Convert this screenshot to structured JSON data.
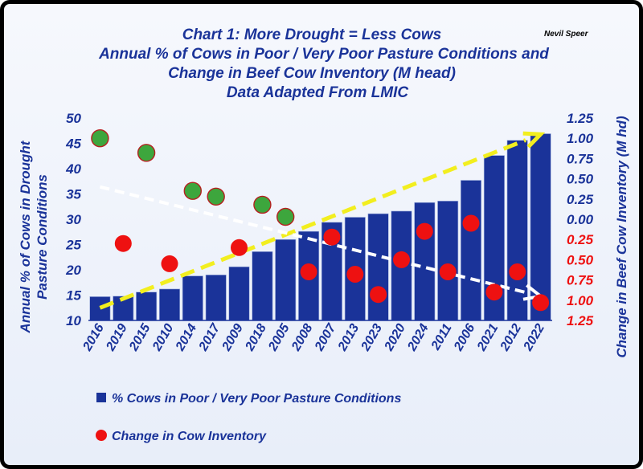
{
  "chart_data": {
    "type": "bar",
    "title_lines": [
      "Chart 1:  More Drought = Less Cows",
      "Annual % of Cows in Poor / Very Poor Pasture Conditions and",
      "Change in Beef Cow Inventory (M head)",
      "Data Adapted From LMIC"
    ],
    "author": "Nevil Speer",
    "ylabel_left_lines": [
      "Annual % of Cows in Drought",
      "Pasture Conditions"
    ],
    "ylabel_right": "Change in Beef Cow Inventory (M hd)",
    "categories": [
      "2016",
      "2019",
      "2015",
      "2010",
      "2014",
      "2017",
      "2009",
      "2018",
      "2005",
      "2008",
      "2007",
      "2013",
      "2023",
      "2020",
      "2024",
      "2011",
      "2006",
      "2021",
      "2012",
      "2022"
    ],
    "ylim_left": [
      10,
      50
    ],
    "yticks_left": [
      "10",
      "15",
      "20",
      "25",
      "30",
      "35",
      "40",
      "45",
      "50"
    ],
    "ylim_right": [
      -1.25,
      1.25
    ],
    "yticks_right": [
      {
        "value": 1.25,
        "label": "1.25"
      },
      {
        "value": 1.0,
        "label": "1.00"
      },
      {
        "value": 0.75,
        "label": "0.75"
      },
      {
        "value": 0.5,
        "label": "0.50"
      },
      {
        "value": 0.25,
        "label": "0.25"
      },
      {
        "value": 0.0,
        "label": "0.00"
      },
      {
        "value": -0.25,
        "label": "0.25"
      },
      {
        "value": -0.5,
        "label": "0.50"
      },
      {
        "value": -0.75,
        "label": "0.75"
      },
      {
        "value": -1.0,
        "label": "1.00"
      },
      {
        "value": -1.25,
        "label": "1.25"
      }
    ],
    "bars": {
      "name": "% Cows in Poor / Very Poor Pasture Conditions",
      "color": "#1a3399",
      "values": [
        14.7,
        14.8,
        15.6,
        16.2,
        18.8,
        19.0,
        20.6,
        23.6,
        26.0,
        27.6,
        29.4,
        30.4,
        31.1,
        31.6,
        33.3,
        33.6,
        37.7,
        42.6,
        45.6,
        46.9
      ]
    },
    "dots": {
      "name": "Change in Cow Inventory",
      "values": [
        1.0,
        -0.3,
        0.82,
        -0.55,
        0.35,
        0.28,
        -0.35,
        0.18,
        0.03,
        -0.65,
        -0.22,
        -0.68,
        -0.93,
        -0.5,
        -0.15,
        -0.65,
        -0.05,
        -0.9,
        -0.65,
        -1.03
      ],
      "positive_color": "#3da63d",
      "negative_color": "#ee1111"
    },
    "trend_arrows": [
      {
        "kind": "drought",
        "color": "#f2ee1f",
        "from": {
          "x": "2016",
          "y": 12.5
        },
        "to": {
          "x": "2022",
          "y": 1.05
        }
      },
      {
        "kind": "inventory",
        "color": "#ffffff",
        "from": {
          "x": "2016",
          "y": 0.4
        },
        "to": {
          "x": "2022",
          "y": -0.95
        }
      }
    ],
    "legend_position": "bottom",
    "grid": false
  }
}
